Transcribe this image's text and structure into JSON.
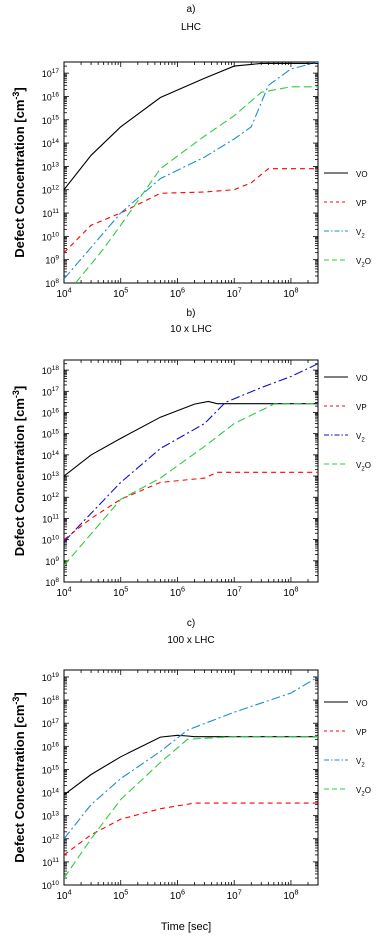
{
  "figure": {
    "shared_xlabel": "Time [sec]"
  },
  "chart_data": [
    {
      "type": "line",
      "panel_label": "a)",
      "title": "LHC",
      "xlabel": "",
      "ylabel": "Defect Concentration [cm",
      "ylabel_sup": "-3",
      "ylabel_end": "]",
      "x_scale": "log",
      "y_scale": "log",
      "xlim": [
        10000,
        300000000
      ],
      "ylim": [
        100000000,
        300000000000000000
      ],
      "x_ticks": [
        {
          "b": "10",
          "e": "4"
        },
        {
          "b": "10",
          "e": "5"
        },
        {
          "b": "10",
          "e": "6"
        },
        {
          "b": "10",
          "e": "7"
        },
        {
          "b": "10",
          "e": "8"
        }
      ],
      "y_ticks": [
        {
          "b": "10",
          "e": "8"
        },
        {
          "b": "10",
          "e": "9"
        },
        {
          "b": "10",
          "e": "10"
        },
        {
          "b": "10",
          "e": "11"
        },
        {
          "b": "10",
          "e": "12"
        },
        {
          "b": "10",
          "e": "13"
        },
        {
          "b": "10",
          "e": "14"
        },
        {
          "b": "10",
          "e": "15"
        },
        {
          "b": "10",
          "e": "16"
        },
        {
          "b": "10",
          "e": "17"
        }
      ],
      "legend_position": "right",
      "series": [
        {
          "name": "VO",
          "legend_sub": "",
          "color": "#000000",
          "dash": "",
          "x": [
            10000,
            30000,
            100000,
            500000,
            3000000,
            10000000,
            30000000,
            100000000,
            300000000
          ],
          "y": [
            1000000000000.0,
            30000000000000.0,
            500000000000000.0,
            9000000000000000.0,
            6e+16,
            2e+17,
            2.6e+17,
            2.6e+17,
            2.6e+17
          ]
        },
        {
          "name": "VP",
          "legend_sub": "",
          "color": "#ff0000",
          "dash": "5,4",
          "x": [
            10000,
            30000,
            100000,
            500000,
            3000000,
            10000000,
            20000000,
            40000000,
            100000000,
            300000000
          ],
          "y": [
            2000000000.0,
            30000000000.0,
            100000000000.0,
            700000000000.0,
            800000000000.0,
            1000000000000.0,
            2000000000000.0,
            8000000000000.0,
            8000000000000.0,
            8000000000000.0
          ]
        },
        {
          "name": "V",
          "legend_sub": "2",
          "color": "#1a8fd0",
          "dash": "9,3,2,3",
          "x": [
            10000,
            100000,
            500000,
            3000000,
            10000000,
            20000000,
            40000000,
            100000000,
            300000000
          ],
          "y": [
            150000000.0,
            100000000000.0,
            3000000000000.0,
            25000000000000.0,
            150000000000000.0,
            500000000000000.0,
            3e+16,
            1.5e+17,
            3e+17
          ]
        },
        {
          "name": "V",
          "legend_sub": "2",
          "name_suffix": "O",
          "color": "#2ecc40",
          "dash": "8,4",
          "x": [
            16000,
            50000,
            100000,
            500000,
            3000000,
            10000000,
            30000000,
            100000000,
            300000000
          ],
          "y": [
            100000000.0,
            3000000000.0,
            30000000000.0,
            8000000000000.0,
            200000000000000.0,
            1500000000000000.0,
            1.5e+16,
            2.6e+16,
            2.6e+16
          ]
        }
      ]
    },
    {
      "type": "line",
      "panel_label": "b)",
      "title": "10 x LHC",
      "xlabel": "",
      "ylabel": "Defect Concentration [cm",
      "ylabel_sup": "-3",
      "ylabel_end": "]",
      "x_scale": "log",
      "y_scale": "log",
      "xlim": [
        10000,
        300000000
      ],
      "ylim": [
        100000000,
        3e+18
      ],
      "x_ticks": [
        {
          "b": "10",
          "e": "4"
        },
        {
          "b": "10",
          "e": "5"
        },
        {
          "b": "10",
          "e": "6"
        },
        {
          "b": "10",
          "e": "7"
        },
        {
          "b": "10",
          "e": "8"
        }
      ],
      "y_ticks": [
        {
          "b": "10",
          "e": "8"
        },
        {
          "b": "10",
          "e": "9"
        },
        {
          "b": "10",
          "e": "10"
        },
        {
          "b": "10",
          "e": "11"
        },
        {
          "b": "10",
          "e": "12"
        },
        {
          "b": "10",
          "e": "13"
        },
        {
          "b": "10",
          "e": "14"
        },
        {
          "b": "10",
          "e": "15"
        },
        {
          "b": "10",
          "e": "16"
        },
        {
          "b": "10",
          "e": "17"
        },
        {
          "b": "10",
          "e": "18"
        }
      ],
      "legend_position": "right",
      "series": [
        {
          "name": "VO",
          "legend_sub": "",
          "color": "#000000",
          "dash": "",
          "x": [
            10000,
            30000,
            100000,
            500000,
            2000000,
            3500000,
            5000000,
            10000000,
            100000000,
            300000000
          ],
          "y": [
            10000000000000.0,
            100000000000000.0,
            600000000000000.0,
            6000000000000000.0,
            2.5e+16,
            3.3e+16,
            2.6e+16,
            2.6e+16,
            2.6e+16,
            2.6e+16
          ]
        },
        {
          "name": "VP",
          "legend_sub": "",
          "color": "#ff0000",
          "dash": "5,4",
          "x": [
            10000,
            30000,
            100000,
            500000,
            3000000,
            5000000,
            10000000,
            100000000,
            300000000
          ],
          "y": [
            10000000000.0,
            100000000000.0,
            800000000000.0,
            5000000000000.0,
            8000000000000.0,
            15000000000000.0,
            15000000000000.0,
            15000000000000.0,
            15000000000000.0
          ]
        },
        {
          "name": "V",
          "legend_sub": "2",
          "color": "#1010cc",
          "dash": "9,3,2,3",
          "x": [
            10000,
            100000,
            500000,
            3000000,
            7000000,
            30000000,
            100000000,
            300000000
          ],
          "y": [
            8000000000.0,
            5000000000000.0,
            200000000000000.0,
            3000000000000000.0,
            3e+16,
            1.5e+17,
            5e+17,
            2e+18
          ]
        },
        {
          "name": "V",
          "legend_sub": "2",
          "name_suffix": "O",
          "color": "#2ecc40",
          "dash": "8,4",
          "x": [
            10000,
            100000,
            500000,
            3000000,
            10000000,
            50000000,
            100000000,
            300000000
          ],
          "y": [
            600000000.0,
            800000000000.0,
            8000000000000.0,
            250000000000000.0,
            3000000000000000.0,
            2.5e+16,
            2.6e+16,
            2.6e+16
          ]
        }
      ]
    },
    {
      "type": "line",
      "panel_label": "c)",
      "title": "100 x LHC",
      "xlabel": "Time [sec]",
      "ylabel": "Defect Concentration [cm",
      "ylabel_sup": "-3",
      "ylabel_end": "]",
      "x_scale": "log",
      "y_scale": "log",
      "xlim": [
        10000,
        300000000
      ],
      "ylim": [
        10000000000,
        2e+19
      ],
      "x_ticks": [
        {
          "b": "10",
          "e": "4"
        },
        {
          "b": "10",
          "e": "5"
        },
        {
          "b": "10",
          "e": "6"
        },
        {
          "b": "10",
          "e": "7"
        },
        {
          "b": "10",
          "e": "8"
        }
      ],
      "y_ticks": [
        {
          "b": "10",
          "e": "10"
        },
        {
          "b": "10",
          "e": "11"
        },
        {
          "b": "10",
          "e": "12"
        },
        {
          "b": "10",
          "e": "13"
        },
        {
          "b": "10",
          "e": "14"
        },
        {
          "b": "10",
          "e": "15"
        },
        {
          "b": "10",
          "e": "16"
        },
        {
          "b": "10",
          "e": "17"
        },
        {
          "b": "10",
          "e": "18"
        },
        {
          "b": "10",
          "e": "19"
        }
      ],
      "legend_position": "right",
      "series": [
        {
          "name": "VO",
          "legend_sub": "",
          "color": "#000000",
          "dash": "",
          "x": [
            10000,
            30000,
            100000,
            500000,
            1000000,
            1500000,
            2000000,
            10000000,
            100000000,
            300000000
          ],
          "y": [
            80000000000000.0,
            600000000000000.0,
            3500000000000000.0,
            2.5e+16,
            3e+16,
            2.8e+16,
            2.6e+16,
            2.6e+16,
            2.6e+16,
            2.6e+16
          ]
        },
        {
          "name": "VP",
          "legend_sub": "",
          "color": "#ff0000",
          "dash": "5,4",
          "x": [
            10000,
            30000,
            100000,
            500000,
            2000000,
            10000000,
            100000000,
            300000000
          ],
          "y": [
            200000000000.0,
            1500000000000.0,
            7000000000000.0,
            20000000000000.0,
            35000000000000.0,
            35000000000000.0,
            35000000000000.0,
            35000000000000.0
          ]
        },
        {
          "name": "V",
          "legend_sub": "2",
          "color": "#1a8fd0",
          "dash": "9,3,2,3",
          "x": [
            10000,
            30000,
            100000,
            500000,
            1500000,
            10000000,
            100000000,
            300000000
          ],
          "y": [
            1000000000000.0,
            30000000000000.0,
            400000000000000.0,
            6000000000000000.0,
            5e+16,
            3e+17,
            2e+18,
            1e+19
          ]
        },
        {
          "name": "V",
          "legend_sub": "2",
          "name_suffix": "O",
          "color": "#2ecc40",
          "dash": "8,4",
          "x": [
            10000,
            30000,
            100000,
            500000,
            1500000,
            10000000,
            100000000,
            300000000
          ],
          "y": [
            20000000000.0,
            1000000000000.0,
            50000000000000.0,
            2000000000000000.0,
            2e+16,
            2.6e+16,
            2.6e+16,
            2.6e+16
          ]
        }
      ]
    }
  ]
}
